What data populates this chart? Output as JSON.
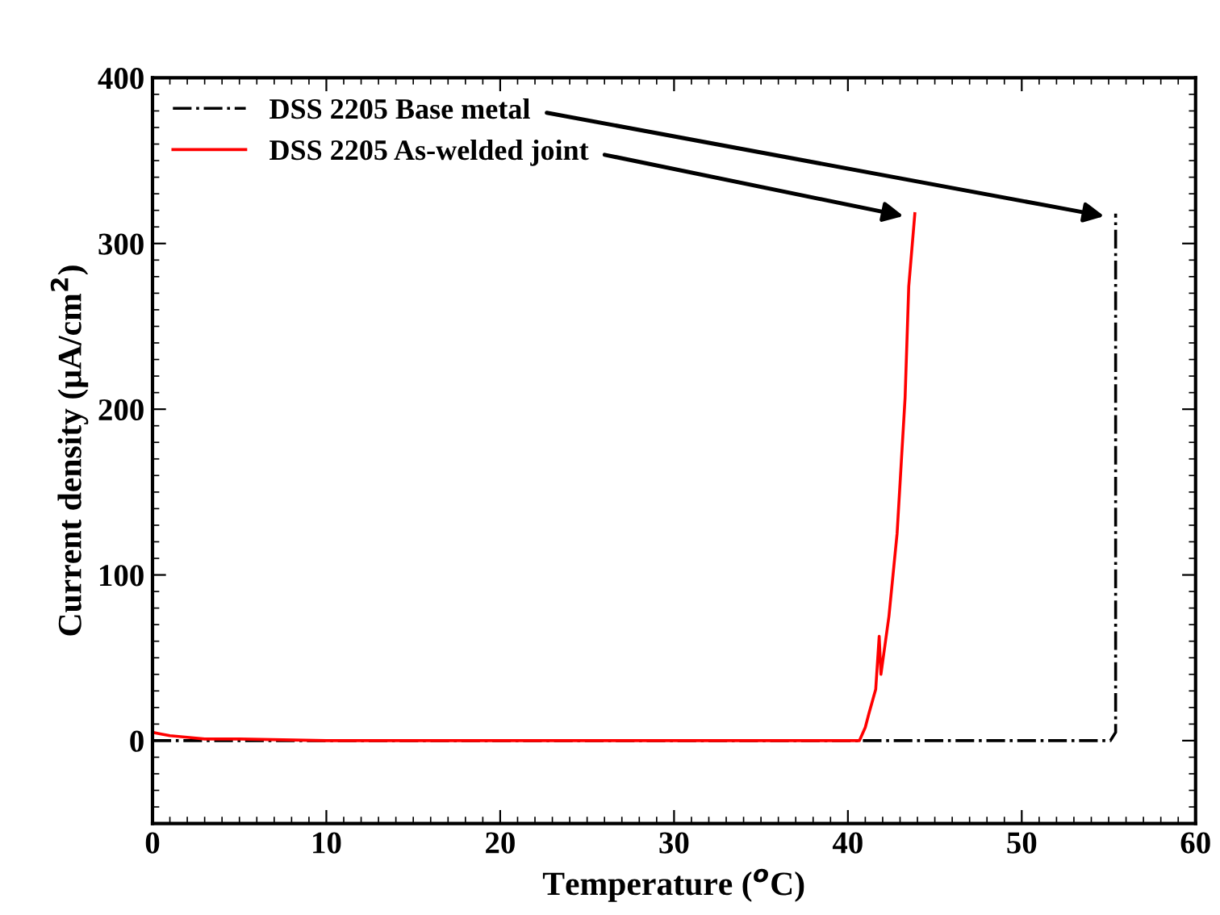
{
  "chart_data": {
    "type": "line",
    "xlabel": "Temperature ($^{o}$C)",
    "ylabel": "Current density (μA/cm$^{2}$)",
    "xlim": [
      0,
      60
    ],
    "ylim": [
      -50,
      400
    ],
    "xticks": [
      0,
      10,
      20,
      30,
      40,
      50,
      60
    ],
    "yticks": [
      0,
      100,
      200,
      300,
      400
    ],
    "grid": false,
    "legend": "top left",
    "marker": "none",
    "series": [
      {
        "name": "DSS 2205 Base metal",
        "color": "#000000",
        "line_style": "dashdot",
        "x": [
          0,
          10,
          20,
          30,
          40,
          50,
          55.1,
          55.4,
          55.4
        ],
        "values": [
          0,
          0,
          0,
          0,
          0,
          0,
          0,
          5,
          318
        ]
      },
      {
        "name": "DSS 2205 As-welded joint",
        "color": "#ff0000",
        "line_style": "solid",
        "x": [
          0,
          0.5,
          1,
          2,
          3,
          5,
          10,
          20,
          30,
          40,
          40.66,
          41.0,
          41.2,
          41.6,
          41.8,
          41.9,
          42.36,
          42.83,
          43.29,
          43.5,
          43.85
        ],
        "values": [
          5,
          4,
          3,
          2,
          1,
          1,
          0,
          0,
          0,
          0,
          0,
          8,
          16,
          31,
          63,
          40,
          75,
          125,
          207,
          274,
          318
        ]
      }
    ]
  }
}
